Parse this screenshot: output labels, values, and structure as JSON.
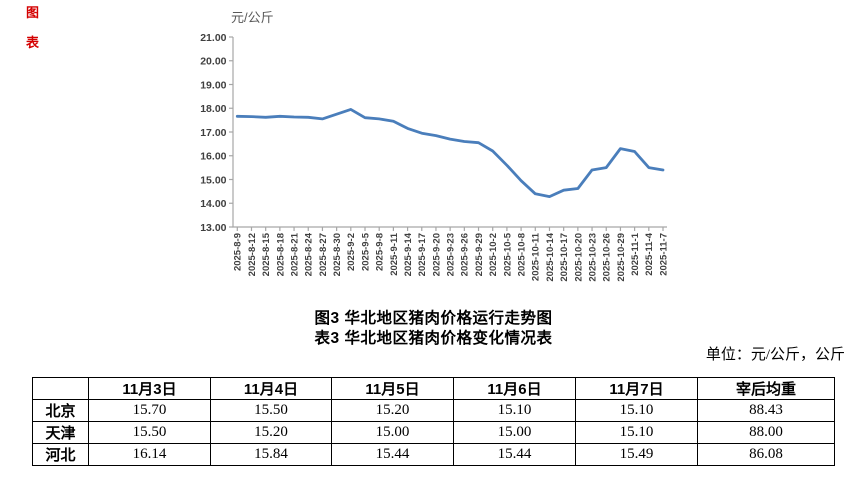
{
  "page": {
    "background": "#ffffff"
  },
  "markers": {
    "top_marker": "图",
    "bottom_marker": "表",
    "color": "#d40000"
  },
  "chart": {
    "unit_label": "元/公斤",
    "line_color": "#4a7ebb",
    "axis_color": "#a6a6a6",
    "tick_label_color": "#3f3f3f",
    "unit_label_color": "#595959"
  },
  "chart_data": {
    "type": "line",
    "title": "图3 华北地区猪肉价格运行走势图",
    "ylabel": "元/公斤",
    "ylim": [
      13,
      21
    ],
    "ytick_interval": 1,
    "yticks": [
      "21.00",
      "20.00",
      "19.00",
      "18.00",
      "17.00",
      "16.00",
      "15.00",
      "14.00",
      "13.00"
    ],
    "x": [
      "2025-8-9",
      "2025-8-12",
      "2025-8-15",
      "2025-8-18",
      "2025-8-21",
      "2025-8-24",
      "2025-8-27",
      "2025-8-30",
      "2025-9-2",
      "2025-9-5",
      "2025-9-8",
      "2025-9-11",
      "2025-9-14",
      "2025-9-17",
      "2025-9-20",
      "2025-9-23",
      "2025-9-26",
      "2025-9-29",
      "2025-10-2",
      "2025-10-5",
      "2025-10-8",
      "2025-10-11",
      "2025-10-14",
      "2025-10-17",
      "2025-10-20",
      "2025-10-23",
      "2025-10-26",
      "2025-10-29",
      "2025-11-1",
      "2025-11-4",
      "2025-11-7"
    ],
    "series": [
      {
        "name": "华北地区猪肉价格",
        "values": [
          17.66,
          17.65,
          17.62,
          17.66,
          17.63,
          17.62,
          17.55,
          17.75,
          17.95,
          17.6,
          17.55,
          17.45,
          17.15,
          16.95,
          16.85,
          16.7,
          16.6,
          16.55,
          16.2,
          15.6,
          14.95,
          14.4,
          14.28,
          14.55,
          14.62,
          15.4,
          15.5,
          16.3,
          16.18,
          15.5,
          15.4
        ]
      }
    ],
    "grid": false,
    "legend": "none",
    "x_label_rotation": -90
  },
  "titles": {
    "figure_title": "图3  华北地区猪肉价格运行走势图",
    "table_title": "表3  华北地区猪肉价格变化情况表"
  },
  "unit_note": "单位：元/公斤，公斤",
  "table": {
    "headers": [
      "",
      "11月3日",
      "11月4日",
      "11月5日",
      "11月6日",
      "11月7日",
      "宰后均重"
    ],
    "rows": [
      {
        "label": "北京",
        "values": [
          "15.70",
          "15.50",
          "15.20",
          "15.10",
          "15.10",
          "88.43"
        ]
      },
      {
        "label": "天津",
        "values": [
          "15.50",
          "15.20",
          "15.00",
          "15.00",
          "15.10",
          "88.00"
        ]
      },
      {
        "label": "河北",
        "values": [
          "16.14",
          "15.84",
          "15.44",
          "15.44",
          "15.49",
          "86.08"
        ]
      }
    ]
  }
}
